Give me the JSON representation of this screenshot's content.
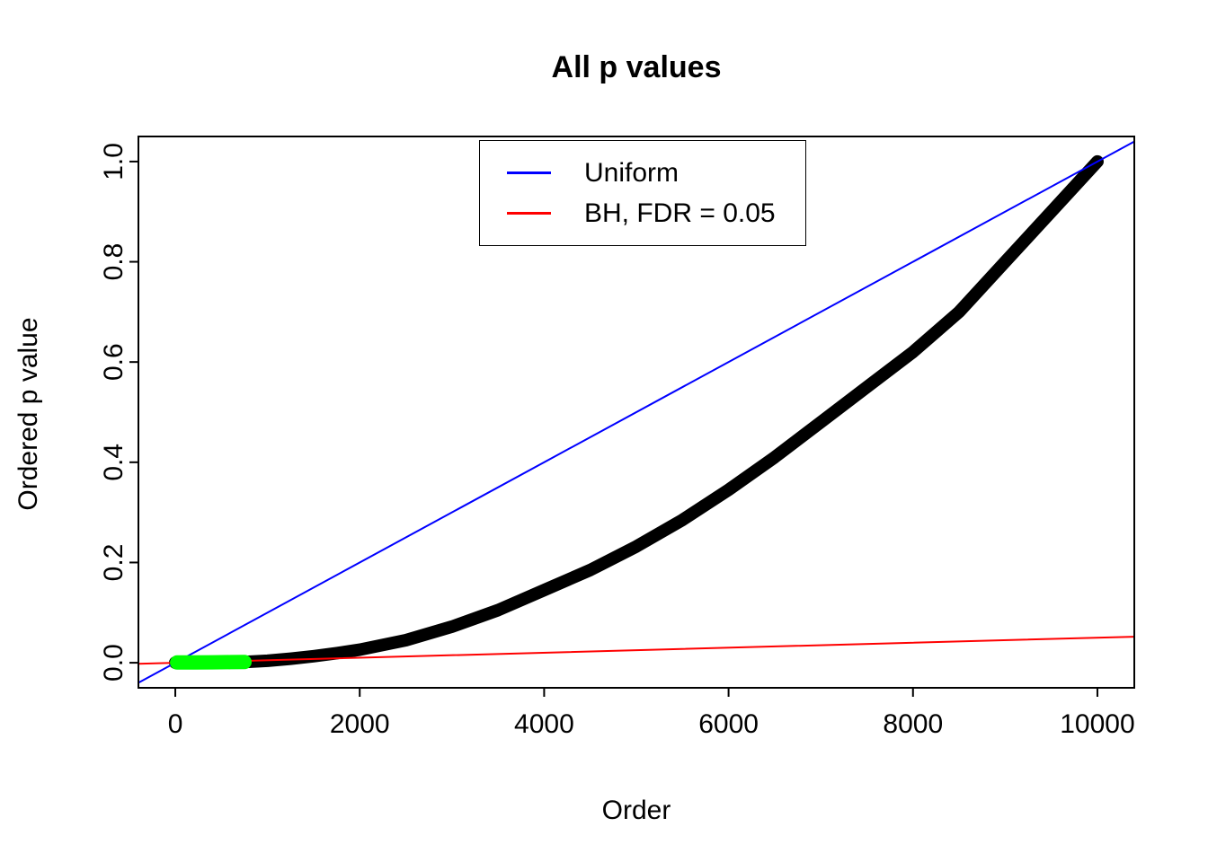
{
  "chart_data": {
    "type": "scatter",
    "title": "All p values",
    "xlabel": "Order",
    "ylabel": "Ordered p value",
    "xlim": [
      -400,
      10400
    ],
    "ylim": [
      -0.05,
      1.05
    ],
    "x_ticks": [
      0,
      2000,
      4000,
      6000,
      8000,
      10000
    ],
    "x_tick_labels": [
      "0",
      "2000",
      "4000",
      "6000",
      "8000",
      "10000"
    ],
    "y_ticks": [
      0,
      0.2,
      0.4,
      0.6,
      0.8,
      1
    ],
    "y_tick_labels": [
      "0.0",
      "0.2",
      "0.4",
      "0.6",
      "0.8",
      "1.0"
    ],
    "grid": false,
    "background": "#FFFFFF",
    "frame_color": "#000000",
    "legend": {
      "position": "top-center",
      "entries": [
        {
          "label": "Uniform",
          "color": "#0000FF"
        },
        {
          "label": "BH, FDR = 0.05",
          "color": "#FF0000"
        }
      ]
    },
    "series": [
      {
        "name": "ordered-p-values",
        "kind": "thick-curve",
        "color": "#000000",
        "width": 14,
        "x": [
          0,
          250,
          500,
          750,
          1000,
          1250,
          1500,
          1750,
          2000,
          2500,
          3000,
          3500,
          4000,
          4500,
          5000,
          5500,
          6000,
          6500,
          7000,
          7500,
          8000,
          8500,
          9000,
          9500,
          10000
        ],
        "y": [
          0.0002,
          0.0004,
          0.0008,
          0.0015,
          0.004,
          0.008,
          0.013,
          0.019,
          0.026,
          0.045,
          0.072,
          0.105,
          0.145,
          0.185,
          0.232,
          0.285,
          0.345,
          0.41,
          0.48,
          0.55,
          0.62,
          0.7,
          0.8,
          0.9,
          1.0
        ]
      },
      {
        "name": "uniform-line",
        "kind": "line",
        "color": "#0000FF",
        "width": 2,
        "x": [
          -400,
          10400
        ],
        "y": [
          -0.04,
          1.04
        ]
      },
      {
        "name": "bh-line",
        "kind": "line",
        "color": "#FF0000",
        "width": 2,
        "x": [
          -400,
          10400
        ],
        "y": [
          -0.002,
          0.052
        ]
      },
      {
        "name": "significant-p-values",
        "kind": "thick-curve",
        "color": "#00FF00",
        "width": 16,
        "x": [
          20,
          200,
          400,
          600,
          750
        ],
        "y": [
          0.0005,
          0.0007,
          0.0009,
          0.0012,
          0.0015
        ]
      }
    ]
  }
}
